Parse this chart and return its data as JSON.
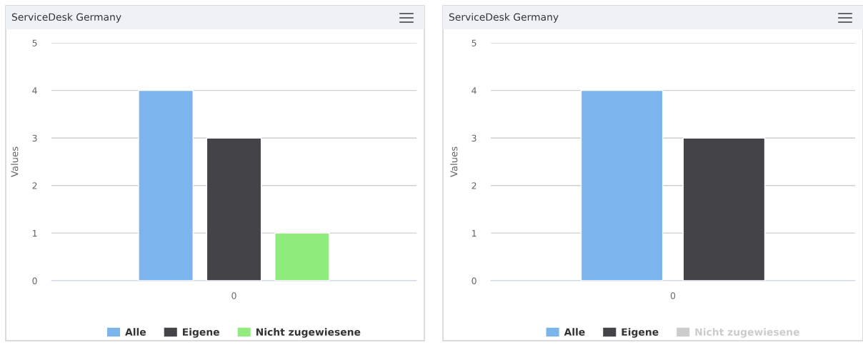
{
  "chart_data": [
    {
      "type": "bar",
      "title": "ServiceDesk Germany",
      "ylabel": "Values",
      "categories": [
        "0"
      ],
      "series": [
        {
          "name": "Alle",
          "color": "#7cb5ec",
          "values": [
            4
          ]
        },
        {
          "name": "Eigene",
          "color": "#434348",
          "values": [
            3
          ]
        },
        {
          "name": "Nicht zugewiesene",
          "color": "#90ed7d",
          "values": [
            1
          ]
        }
      ],
      "ylim": [
        0,
        5
      ],
      "yticks": [
        0,
        1,
        2,
        3,
        4,
        5
      ],
      "grid": "y",
      "legend": "bottom"
    },
    {
      "type": "bar",
      "title": "ServiceDesk Germany",
      "ylabel": "Values",
      "categories": [
        "0"
      ],
      "series": [
        {
          "name": "Alle",
          "color": "#7cb5ec",
          "values": [
            4
          ]
        },
        {
          "name": "Eigene",
          "color": "#434348",
          "values": [
            3
          ]
        },
        {
          "name": "Nicht zugewiesene",
          "color": "#cccccc",
          "values": [
            null
          ]
        }
      ],
      "ylim": [
        0,
        5
      ],
      "yticks": [
        0,
        1,
        2,
        3,
        4,
        5
      ],
      "grid": "y",
      "legend": "bottom"
    }
  ]
}
